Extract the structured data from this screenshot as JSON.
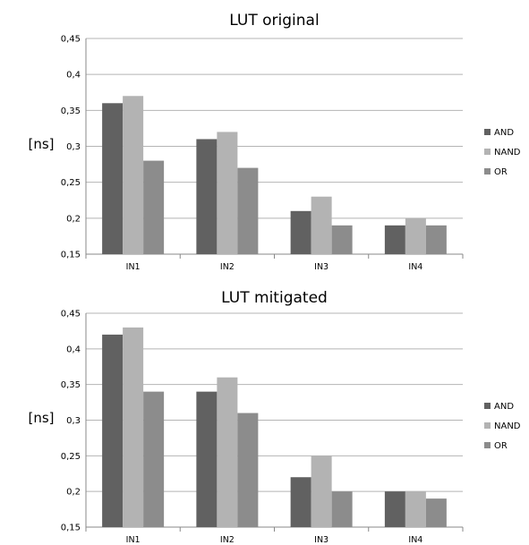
{
  "chart_data": [
    {
      "type": "bar",
      "title": "LUT original",
      "ylabel": "[ns]",
      "xlabel": "",
      "categories": [
        "IN1",
        "IN2",
        "IN3",
        "IN4"
      ],
      "series": [
        {
          "name": "AND",
          "color": "#616161",
          "values": [
            0.36,
            0.31,
            0.21,
            0.19
          ]
        },
        {
          "name": "NAND",
          "color": "#b3b3b3",
          "values": [
            0.37,
            0.32,
            0.23,
            0.2
          ]
        },
        {
          "name": "OR",
          "color": "#8c8c8c",
          "values": [
            0.28,
            0.27,
            0.19,
            0.19
          ]
        }
      ],
      "ylim": [
        0.15,
        0.45
      ],
      "yticks": [
        "0,15",
        "0,2",
        "0,25",
        "0,3",
        "0,35",
        "0,4",
        "0,45"
      ],
      "grid": true,
      "legend": "right"
    },
    {
      "type": "bar",
      "title": "LUT mitigated",
      "ylabel": "[ns]",
      "xlabel": "",
      "categories": [
        "IN1",
        "IN2",
        "IN3",
        "IN4"
      ],
      "series": [
        {
          "name": "AND",
          "color": "#616161",
          "values": [
            0.42,
            0.34,
            0.22,
            0.2
          ]
        },
        {
          "name": "NAND",
          "color": "#b3b3b3",
          "values": [
            0.43,
            0.36,
            0.25,
            0.2
          ]
        },
        {
          "name": "OR",
          "color": "#8c8c8c",
          "values": [
            0.34,
            0.31,
            0.2,
            0.19
          ]
        }
      ],
      "ylim": [
        0.15,
        0.45
      ],
      "yticks": [
        "0,15",
        "0,2",
        "0,25",
        "0,3",
        "0,35",
        "0,4",
        "0,45"
      ],
      "grid": true,
      "legend": "right"
    }
  ]
}
